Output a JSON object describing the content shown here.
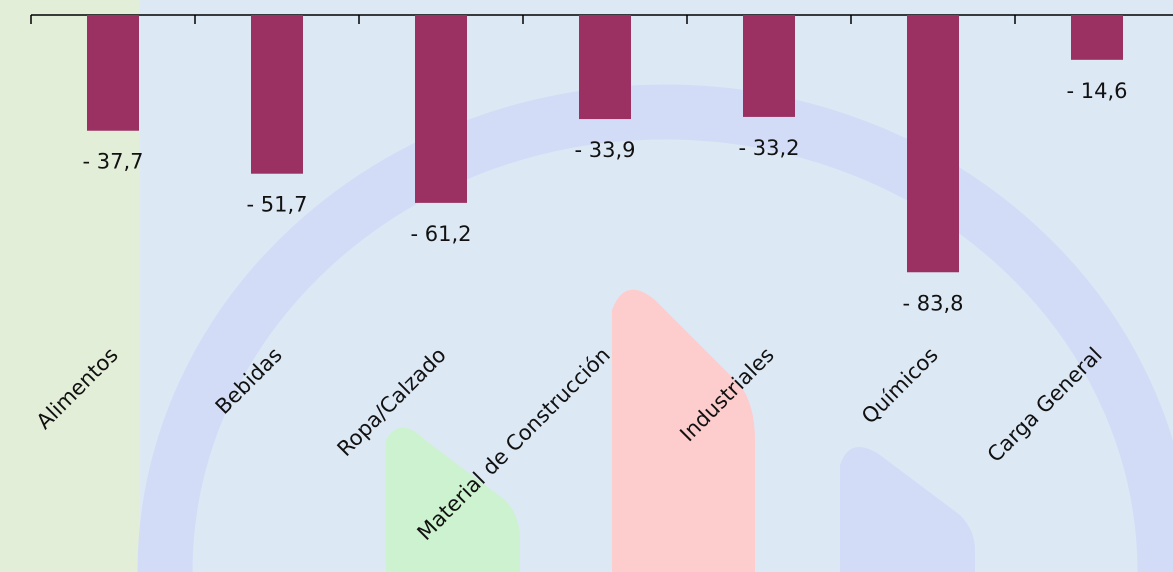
{
  "chart_data": {
    "type": "bar",
    "categories": [
      "Alimentos",
      "Bebidas",
      "Ropa/Calzado",
      "Material de Construcción",
      "Industriales",
      "Químicos",
      "Carga General"
    ],
    "values": [
      -37.7,
      -51.7,
      -61.2,
      -33.9,
      -33.2,
      -83.8,
      -14.6
    ],
    "value_labels": [
      "- 37,7",
      "- 51,7",
      "- 61,2",
      "- 33,9",
      "- 33,2",
      "- 83,8",
      "- 14,6"
    ],
    "color": "#9b3162",
    "ylim": [
      -100,
      0
    ]
  }
}
